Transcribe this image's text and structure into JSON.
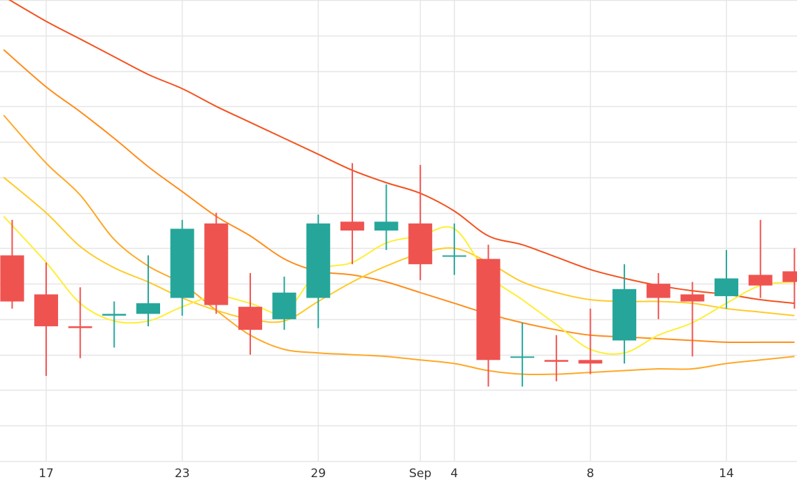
{
  "chart_data": {
    "type": "candlestick",
    "title": "",
    "xlabel": "",
    "ylabel": "",
    "colors": {
      "up": "#26a69a",
      "down": "#ef5350",
      "grid": "#e6e6e6",
      "axis_text": "#333333"
    },
    "x_ticks": [
      {
        "i": 1,
        "label": "17"
      },
      {
        "i": 5,
        "label": "23"
      },
      {
        "i": 9,
        "label": "29"
      },
      {
        "i": 12,
        "label": "Sep"
      },
      {
        "i": 13,
        "label": "4"
      },
      {
        "i": 17,
        "label": "8"
      },
      {
        "i": 21,
        "label": "14"
      }
    ],
    "ylim": [
      0,
      13
    ],
    "y_grid_count": 13,
    "candles": [
      {
        "i": 0,
        "open": 5.8,
        "high": 6.8,
        "low": 4.3,
        "close": 4.5
      },
      {
        "i": 1,
        "open": 4.7,
        "high": 5.6,
        "low": 2.4,
        "close": 3.8
      },
      {
        "i": 2,
        "open": 3.8,
        "high": 4.9,
        "low": 2.9,
        "close": 3.75
      },
      {
        "i": 3,
        "open": 4.1,
        "high": 4.5,
        "low": 3.2,
        "close": 4.15
      },
      {
        "i": 4,
        "open": 4.15,
        "high": 5.8,
        "low": 3.8,
        "close": 4.45
      },
      {
        "i": 5,
        "open": 4.6,
        "high": 6.8,
        "low": 4.1,
        "close": 6.55
      },
      {
        "i": 6,
        "open": 6.7,
        "high": 7.0,
        "low": 4.15,
        "close": 4.4
      },
      {
        "i": 7,
        "open": 4.35,
        "high": 5.3,
        "low": 3.0,
        "close": 3.7
      },
      {
        "i": 8,
        "open": 4.0,
        "high": 5.2,
        "low": 3.7,
        "close": 4.75
      },
      {
        "i": 9,
        "open": 4.6,
        "high": 6.95,
        "low": 3.75,
        "close": 6.7
      },
      {
        "i": 10,
        "open": 6.75,
        "high": 8.4,
        "low": 5.55,
        "close": 6.5
      },
      {
        "i": 11,
        "open": 6.5,
        "high": 7.8,
        "low": 5.95,
        "close": 6.75
      },
      {
        "i": 12,
        "open": 6.7,
        "high": 8.35,
        "low": 5.1,
        "close": 5.55
      },
      {
        "i": 13,
        "open": 5.8,
        "high": 6.7,
        "low": 5.25,
        "close": 5.8
      },
      {
        "i": 14,
        "open": 5.7,
        "high": 6.1,
        "low": 2.1,
        "close": 2.85
      },
      {
        "i": 15,
        "open": 2.95,
        "high": 3.9,
        "low": 2.1,
        "close": 2.95
      },
      {
        "i": 16,
        "open": 2.85,
        "high": 3.55,
        "low": 2.25,
        "close": 2.8
      },
      {
        "i": 17,
        "open": 2.85,
        "high": 4.3,
        "low": 2.45,
        "close": 2.75
      },
      {
        "i": 18,
        "open": 3.4,
        "high": 5.55,
        "low": 2.75,
        "close": 4.85
      },
      {
        "i": 19,
        "open": 5.0,
        "high": 5.3,
        "low": 4.0,
        "close": 4.6
      },
      {
        "i": 20,
        "open": 4.7,
        "high": 5.05,
        "low": 2.95,
        "close": 4.5
      },
      {
        "i": 21,
        "open": 4.65,
        "high": 5.95,
        "low": 4.3,
        "close": 5.15
      },
      {
        "i": 22,
        "open": 5.25,
        "high": 6.8,
        "low": 4.6,
        "close": 4.95
      },
      {
        "i": 23,
        "open": 5.35,
        "high": 6.0,
        "low": 4.3,
        "close": 5.05
      }
    ],
    "moving_averages": [
      {
        "color": "#f4511e",
        "values": [
          [
            -0.25,
            13.1
          ],
          [
            1,
            12.4
          ],
          [
            2,
            11.9
          ],
          [
            3,
            11.4
          ],
          [
            4,
            10.9
          ],
          [
            5,
            10.5
          ],
          [
            6,
            10.0
          ],
          [
            7,
            9.55
          ],
          [
            8,
            9.1
          ],
          [
            9,
            8.65
          ],
          [
            10,
            8.2
          ],
          [
            11,
            7.85
          ],
          [
            12,
            7.55
          ],
          [
            13,
            7.05
          ],
          [
            14,
            6.35
          ],
          [
            15,
            6.1
          ],
          [
            16,
            5.75
          ],
          [
            17,
            5.4
          ],
          [
            18,
            5.15
          ],
          [
            19,
            4.95
          ],
          [
            20,
            4.8
          ],
          [
            21,
            4.7
          ],
          [
            22,
            4.55
          ],
          [
            23,
            4.45
          ]
        ]
      },
      {
        "color": "#ff8c1a",
        "values": [
          [
            -0.25,
            11.6
          ],
          [
            1,
            10.55
          ],
          [
            2,
            9.85
          ],
          [
            3,
            9.1
          ],
          [
            4,
            8.3
          ],
          [
            5,
            7.6
          ],
          [
            6,
            6.9
          ],
          [
            7,
            6.35
          ],
          [
            8,
            5.7
          ],
          [
            9,
            5.35
          ],
          [
            10,
            5.25
          ],
          [
            11,
            5.05
          ],
          [
            12,
            4.75
          ],
          [
            13,
            4.45
          ],
          [
            14,
            4.15
          ],
          [
            15,
            3.9
          ],
          [
            16,
            3.7
          ],
          [
            17,
            3.55
          ],
          [
            18,
            3.5
          ],
          [
            19,
            3.45
          ],
          [
            20,
            3.4
          ],
          [
            21,
            3.35
          ],
          [
            22,
            3.35
          ],
          [
            23,
            3.35
          ]
        ]
      },
      {
        "color": "#ffa726",
        "values": [
          [
            -0.25,
            9.75
          ],
          [
            1,
            8.4
          ],
          [
            2,
            7.5
          ],
          [
            3,
            6.25
          ],
          [
            4,
            5.5
          ],
          [
            5,
            5.0
          ],
          [
            6,
            4.25
          ],
          [
            7,
            3.55
          ],
          [
            8,
            3.15
          ],
          [
            9,
            3.05
          ],
          [
            10,
            3.0
          ],
          [
            11,
            2.95
          ],
          [
            12,
            2.85
          ],
          [
            13,
            2.75
          ],
          [
            14,
            2.55
          ],
          [
            15,
            2.45
          ],
          [
            16,
            2.45
          ],
          [
            17,
            2.5
          ],
          [
            18,
            2.55
          ],
          [
            19,
            2.6
          ],
          [
            20,
            2.6
          ],
          [
            21,
            2.75
          ],
          [
            22,
            2.85
          ],
          [
            23,
            2.95
          ]
        ]
      },
      {
        "color": "#ffca28",
        "values": [
          [
            -0.25,
            8.0
          ],
          [
            1,
            7.0
          ],
          [
            2,
            6.05
          ],
          [
            3,
            5.45
          ],
          [
            4,
            5.05
          ],
          [
            5,
            4.6
          ],
          [
            6,
            4.25
          ],
          [
            7,
            4.0
          ],
          [
            8,
            3.95
          ],
          [
            9,
            4.5
          ],
          [
            10,
            5.05
          ],
          [
            11,
            5.5
          ],
          [
            12,
            5.85
          ],
          [
            13,
            6.0
          ],
          [
            14,
            5.6
          ],
          [
            15,
            5.05
          ],
          [
            16,
            4.75
          ],
          [
            17,
            4.55
          ],
          [
            18,
            4.5
          ],
          [
            19,
            4.5
          ],
          [
            20,
            4.45
          ],
          [
            21,
            4.3
          ],
          [
            22,
            4.2
          ],
          [
            23,
            4.1
          ]
        ]
      },
      {
        "color": "#ffee33",
        "values": [
          [
            -0.25,
            6.9
          ],
          [
            1,
            5.6
          ],
          [
            2,
            4.45
          ],
          [
            3,
            3.95
          ],
          [
            4,
            3.95
          ],
          [
            5,
            4.35
          ],
          [
            6,
            4.65
          ],
          [
            7,
            4.45
          ],
          [
            8,
            4.2
          ],
          [
            9,
            5.35
          ],
          [
            10,
            5.6
          ],
          [
            11,
            6.15
          ],
          [
            12,
            6.35
          ],
          [
            13,
            6.55
          ],
          [
            14,
            5.25
          ],
          [
            15,
            4.55
          ],
          [
            16,
            3.85
          ],
          [
            17,
            3.15
          ],
          [
            18,
            3.05
          ],
          [
            19,
            3.55
          ],
          [
            20,
            3.9
          ],
          [
            21,
            4.45
          ],
          [
            22,
            4.95
          ],
          [
            23,
            5.05
          ]
        ]
      }
    ]
  }
}
